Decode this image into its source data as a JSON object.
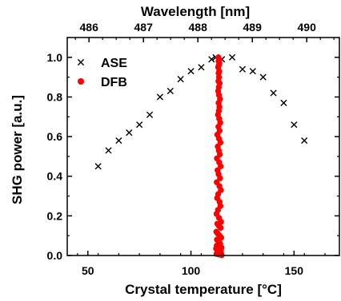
{
  "chart_data": {
    "type": "scatter",
    "xlabel": "Crystal temperature [°C]",
    "ylabel": "SHG power [a.u.]",
    "top_xlabel": "Wavelength [nm]",
    "xlim": [
      40,
      172
    ],
    "ylim": [
      0,
      1.1
    ],
    "top_xlim": [
      485.6,
      490.6
    ],
    "x_ticks": [
      50,
      100,
      150
    ],
    "y_ticks": [
      0.0,
      0.2,
      0.4,
      0.6,
      0.8,
      1.0
    ],
    "top_ticks": [
      486,
      487,
      488,
      489,
      490
    ],
    "grid": false,
    "legend_position": "top-left",
    "series": [
      {
        "name": "ASE",
        "marker": "x",
        "color": "#000000",
        "x": [
          55,
          60,
          65,
          70,
          75,
          80,
          85,
          90,
          95,
          100,
          105,
          110,
          112,
          115,
          120,
          125,
          130,
          135,
          140,
          145,
          150,
          155
        ],
        "y": [
          0.45,
          0.53,
          0.58,
          0.62,
          0.66,
          0.71,
          0.8,
          0.83,
          0.89,
          0.93,
          0.95,
          0.99,
          1.0,
          0.99,
          1.0,
          0.94,
          0.93,
          0.9,
          0.82,
          0.77,
          0.66,
          0.58
        ]
      },
      {
        "name": "DFB",
        "marker": "circle",
        "color": "#ff0000",
        "x": [
          113.3,
          113.6,
          113.4,
          113.8,
          113.5,
          113.2,
          113.7,
          113.4,
          113.6,
          113.3,
          113.9,
          113.5,
          113.2,
          113.6,
          114.1,
          113.4,
          113.8,
          113.5,
          113.1,
          113.7,
          114.2,
          113.3,
          113.9,
          112.8,
          113.6,
          114.3,
          113.0,
          113.5,
          114.0,
          112.6,
          113.7,
          114.4,
          112.9,
          113.4,
          114.1,
          112.5,
          113.8,
          114.5,
          113.2,
          112.7,
          113.9,
          114.3,
          113.1,
          112.4,
          113.6,
          114.6,
          112.8,
          113.5,
          114.4,
          112.3,
          113.0,
          113.9,
          114.7,
          112.6,
          113.4,
          114.2,
          112.5,
          113.7,
          114.8,
          112.2,
          113.3,
          114.5,
          112.9,
          113.8,
          114.6,
          112.4,
          113.6,
          114.9
        ],
        "y": [
          1.0,
          0.99,
          0.98,
          0.97,
          0.96,
          0.95,
          0.93,
          0.92,
          0.9,
          0.88,
          0.87,
          0.85,
          0.83,
          0.81,
          0.79,
          0.77,
          0.75,
          0.73,
          0.71,
          0.69,
          0.67,
          0.65,
          0.63,
          0.61,
          0.59,
          0.57,
          0.55,
          0.53,
          0.51,
          0.49,
          0.47,
          0.45,
          0.43,
          0.41,
          0.39,
          0.37,
          0.35,
          0.33,
          0.31,
          0.29,
          0.27,
          0.25,
          0.23,
          0.21,
          0.19,
          0.17,
          0.16,
          0.15,
          0.14,
          0.12,
          0.11,
          0.1,
          0.09,
          0.08,
          0.07,
          0.06,
          0.05,
          0.045,
          0.04,
          0.035,
          0.03,
          0.025,
          0.02,
          0.015,
          0.012,
          0.008,
          0.005,
          0.002
        ]
      }
    ]
  }
}
